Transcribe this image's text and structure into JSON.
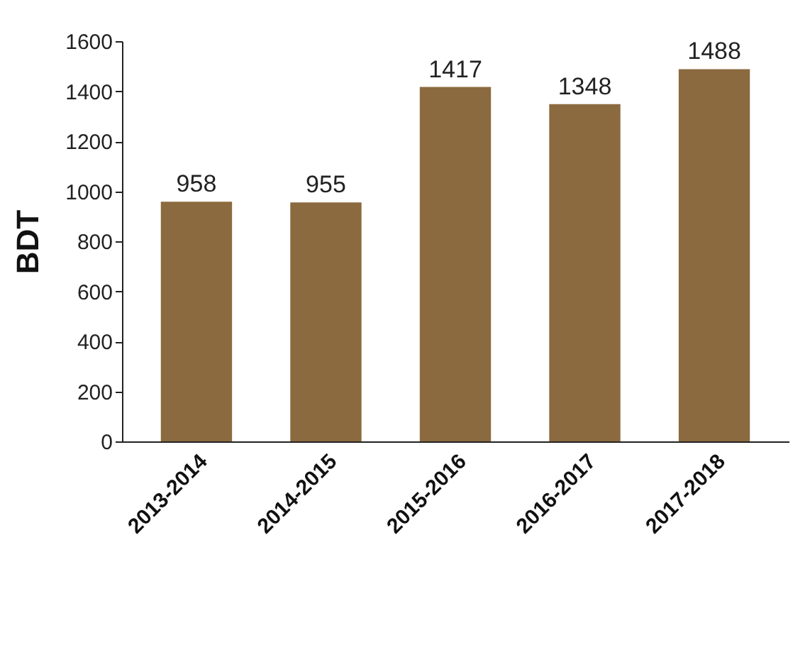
{
  "chart_data": {
    "type": "bar",
    "ylabel": "BDT",
    "categories": [
      "2013-2014",
      "2014-2015",
      "2015-2016",
      "2016-2017",
      "2017-2018"
    ],
    "values": [
      958,
      955,
      1417,
      1348,
      1488
    ],
    "color": "#8c6a3f",
    "ylim": [
      0,
      1600
    ],
    "yticks": [
      0,
      200,
      400,
      600,
      800,
      1000,
      1200,
      1400,
      1600
    ],
    "data_labels": true,
    "grid": false
  }
}
